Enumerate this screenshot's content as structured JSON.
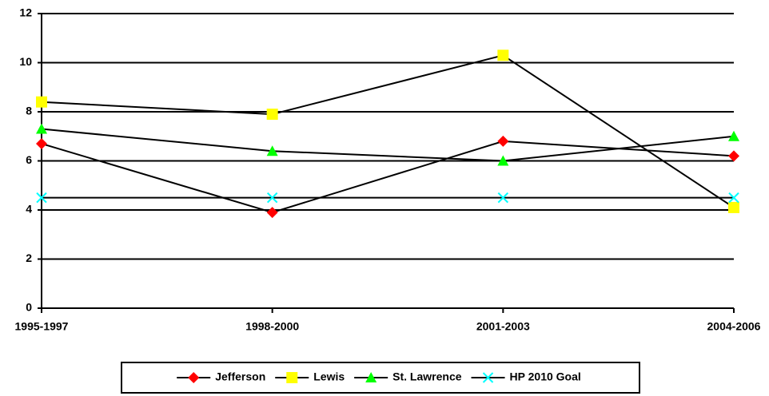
{
  "chart_data": {
    "type": "line",
    "categories": [
      "1995-1997",
      "1998-2000",
      "2001-2003",
      "2004-2006"
    ],
    "series": [
      {
        "name": "Jefferson",
        "color": "#ff0000",
        "marker": "diamond",
        "values": [
          6.7,
          3.9,
          6.8,
          6.2
        ]
      },
      {
        "name": "Lewis",
        "color": "#ffff00",
        "marker": "square",
        "values": [
          8.4,
          7.9,
          10.3,
          4.1
        ]
      },
      {
        "name": "St. Lawrence",
        "color": "#00ff00",
        "marker": "triangle",
        "values": [
          7.3,
          6.4,
          6.0,
          7.0
        ]
      },
      {
        "name": "HP 2010 Goal",
        "color": "#00ffff",
        "marker": "x",
        "values": [
          4.5,
          4.5,
          4.5,
          4.5
        ]
      }
    ],
    "line_color": "#000000",
    "ylim": [
      0,
      12
    ],
    "yticks": [
      0,
      2,
      4,
      6,
      8,
      10,
      12
    ],
    "grid": true,
    "legend": "bottom"
  }
}
